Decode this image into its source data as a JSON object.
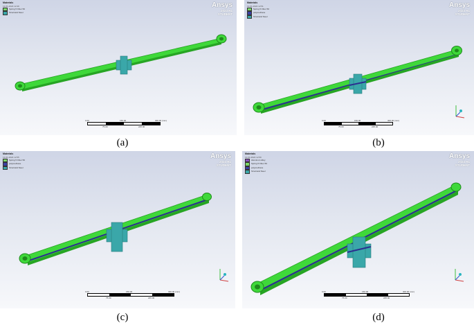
{
  "panels": [
    {
      "id": "a",
      "caption": "(a)",
      "legend": {
        "title": "Materials",
        "date": "12-01-2024 12:49",
        "items": [
          {
            "label": "Spring 5 Fiber 50",
            "color": "#7bd868"
          },
          {
            "label": "Structural Steel",
            "color": "#3aa7a9"
          }
        ]
      },
      "logo": {
        "brand": "Ansys",
        "version": "2023 R1",
        "edition": "STUDENT"
      },
      "scale": {
        "top": [
          "0.00",
          "150.00",
          "300.00 (mm)"
        ],
        "bottom": [
          "75.00",
          "225.00"
        ]
      }
    },
    {
      "id": "b",
      "caption": "(b)",
      "legend": {
        "title": "Materials",
        "date": "12-01-2024 12:51",
        "items": [
          {
            "label": "Spring 5 Fiber 50",
            "color": "#7bd868"
          },
          {
            "label": "polyurethane",
            "color": "#3b3fa3"
          },
          {
            "label": "Structural Steel",
            "color": "#3aa7a9"
          }
        ]
      },
      "logo": {
        "brand": "Ansys",
        "version": "2023 R1",
        "edition": "STUDENT"
      },
      "scale": {
        "top": [
          "0.00",
          "150.00",
          "300.00 (mm)"
        ],
        "bottom": [
          "75.00",
          "225.00"
        ]
      }
    },
    {
      "id": "c",
      "caption": "(c)",
      "legend": {
        "title": "Materials",
        "date": "12-01-2024 12:55",
        "items": [
          {
            "label": "Spring 5 Fiber 50",
            "color": "#7bd868"
          },
          {
            "label": "polyurethane",
            "color": "#3b3fa3"
          },
          {
            "label": "Structural Steel",
            "color": "#3aa7a9"
          }
        ]
      },
      "logo": {
        "brand": "Ansys",
        "version": "2023 R1",
        "edition": "STUDENT"
      },
      "scale": {
        "top": [
          "0.00",
          "150.00",
          "300.00 (mm)"
        ],
        "bottom": [
          "75.00",
          "225.00"
        ]
      }
    },
    {
      "id": "d",
      "caption": "(d)",
      "legend": {
        "title": "Materials",
        "date": "12-01-2024 12:59",
        "items": [
          {
            "label": "Aluminum Alloy",
            "color": "#8a4fbf"
          },
          {
            "label": "Spring 5 Fiber 50",
            "color": "#7bd868"
          },
          {
            "label": "polyurethane",
            "color": "#3b3fa3"
          },
          {
            "label": "Structural Steel",
            "color": "#3aa7a9"
          }
        ]
      },
      "logo": {
        "brand": "Ansys",
        "version": "2023 R1",
        "edition": "STUDENT"
      },
      "scale": {
        "top": [
          "0.00",
          "150.00",
          "300.00 (mm)"
        ],
        "bottom": [
          "75.00",
          "225.00"
        ]
      }
    }
  ],
  "colors": {
    "spring_green": "#3fd83a",
    "spring_green_dark": "#27a524",
    "structural_steel": "#3aa7a9",
    "polyurethane": "#2b2f8f",
    "viewport_top": "#cfd5e6",
    "viewport_bottom": "#f7f8fb"
  },
  "icons": {
    "triad": "xyz-axis-triad-icon"
  }
}
